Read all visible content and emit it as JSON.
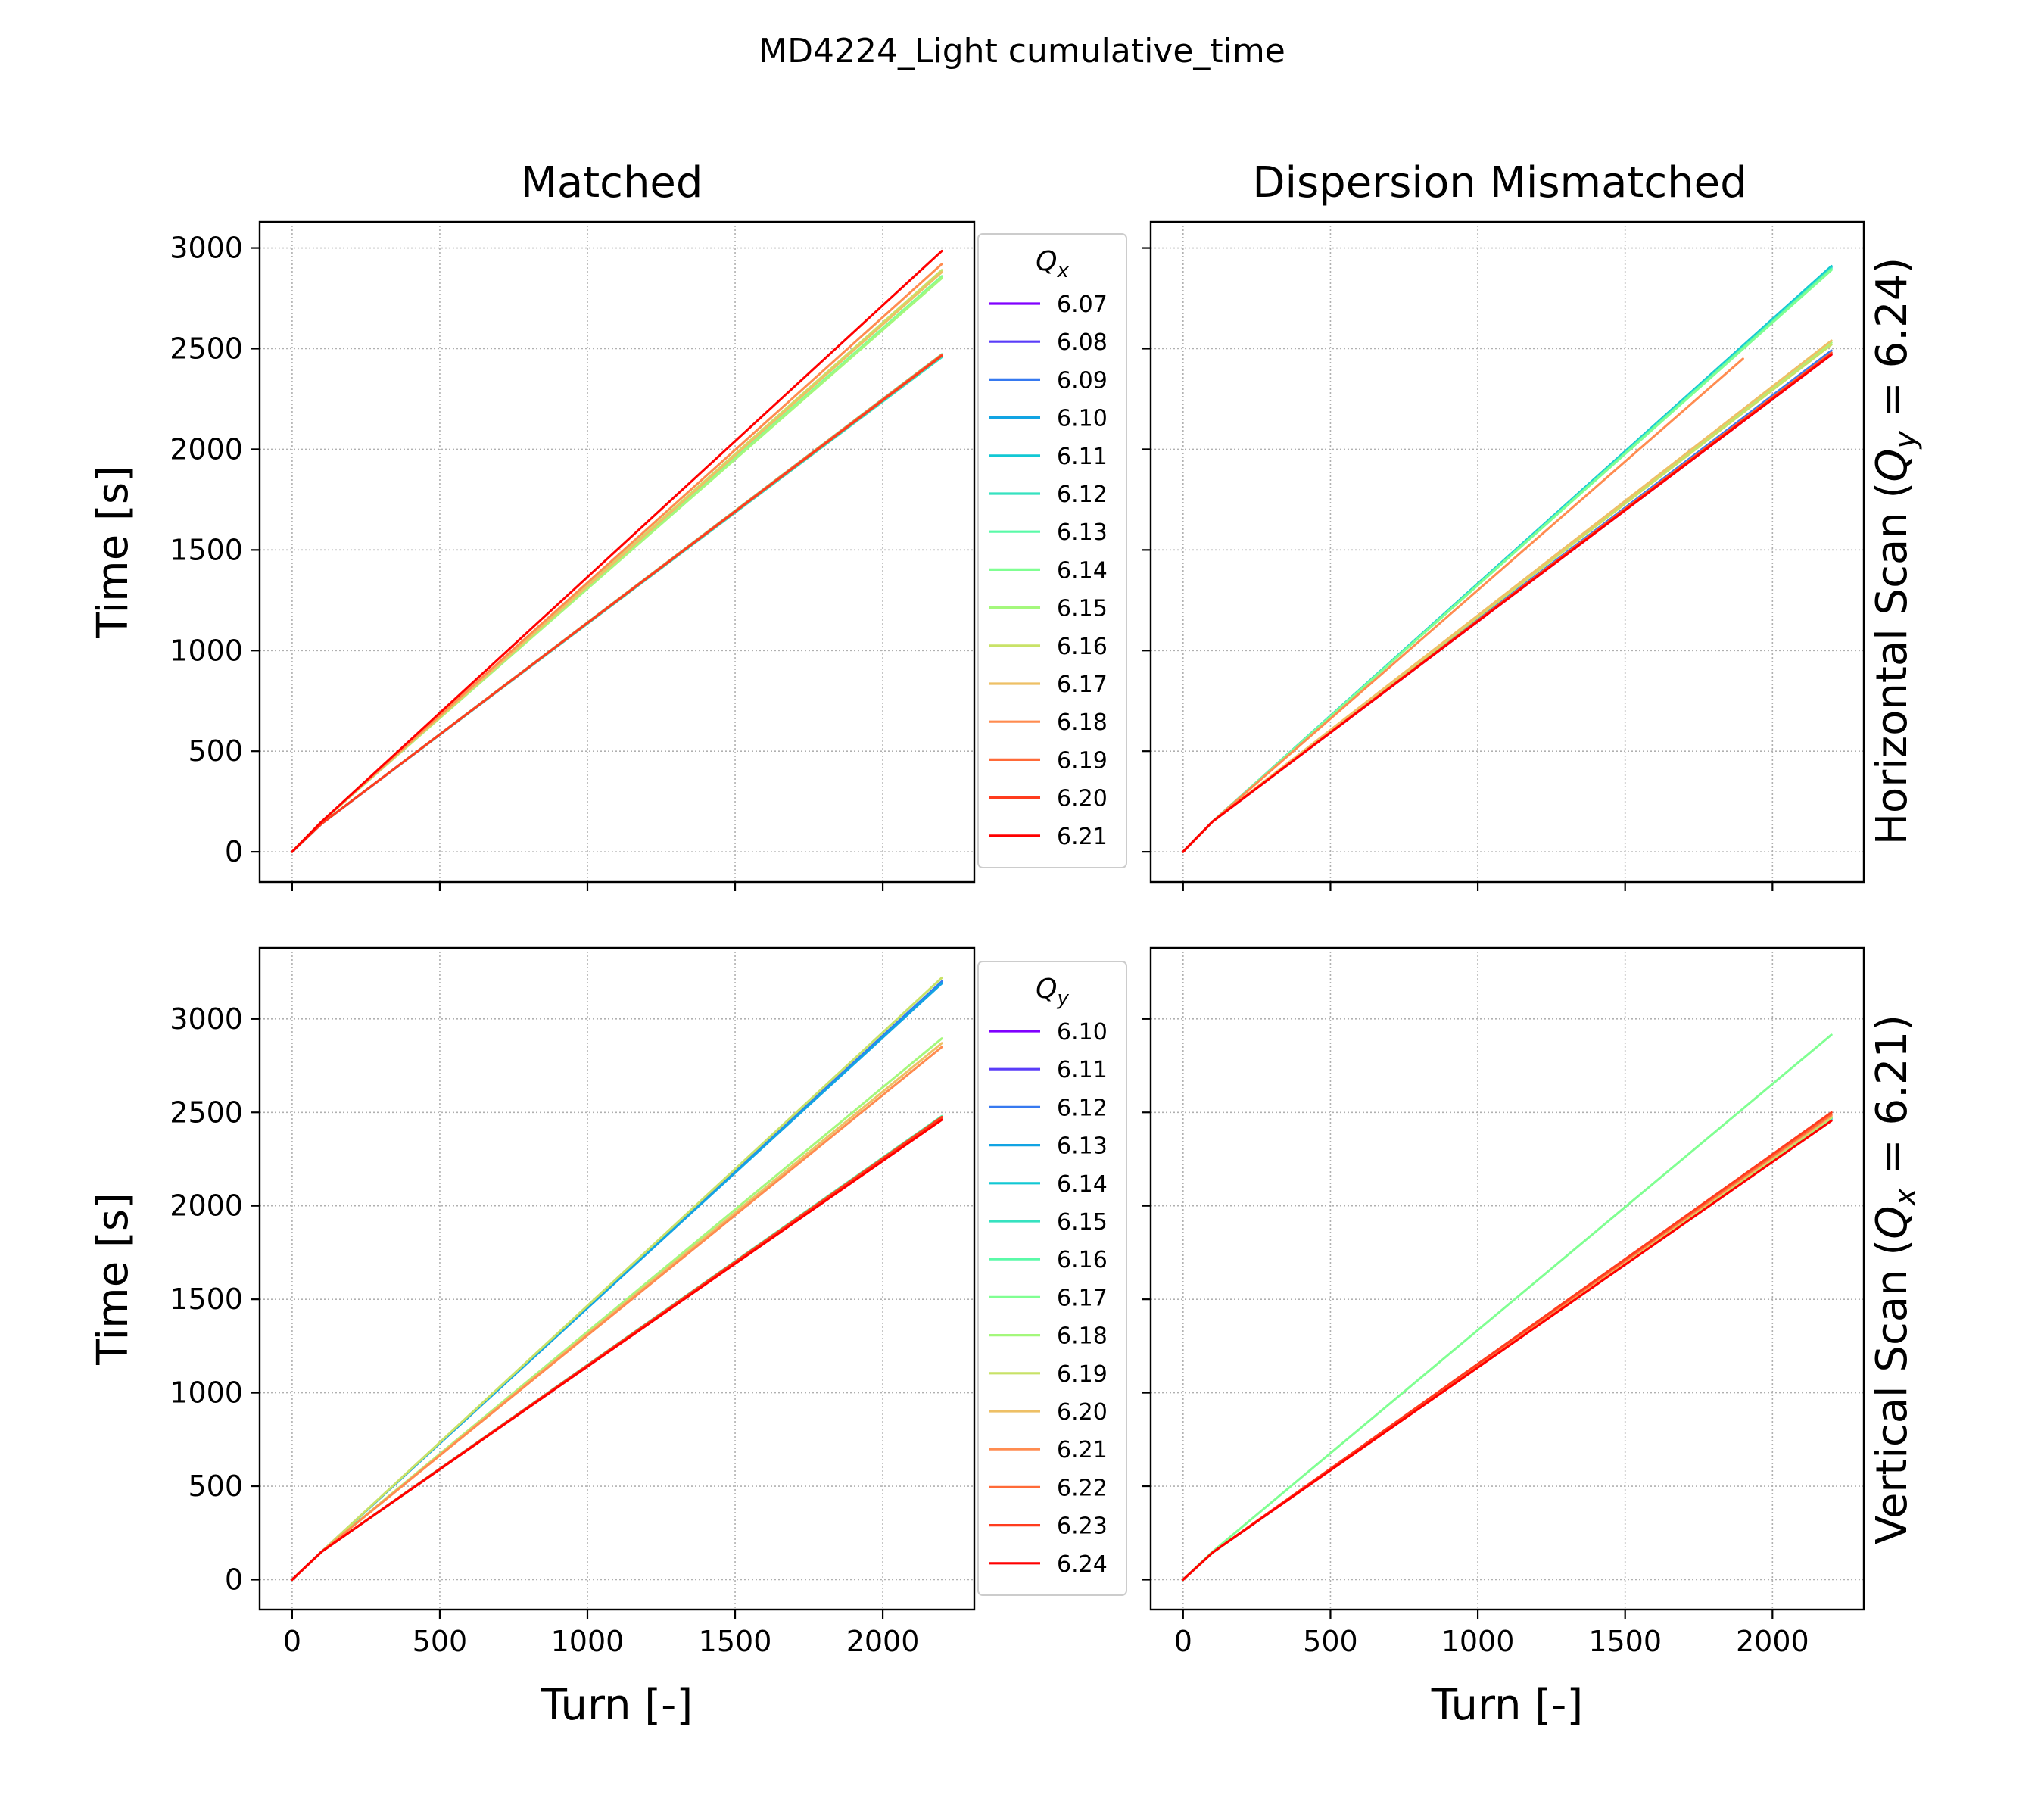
{
  "figure": {
    "title": "MD4224_Light cumulative_time",
    "col_titles": [
      "Matched",
      "Dispersion Mismatched"
    ],
    "row_labels": [
      "Horizontal Scan (Q_y = 6.24)",
      "Vertical Scan (Q_x = 6.21)"
    ]
  },
  "legends": {
    "horizontal": {
      "title": "Qx",
      "entries": [
        "6.07",
        "6.08",
        "6.09",
        "6.10",
        "6.11",
        "6.12",
        "6.13",
        "6.14",
        "6.15",
        "6.16",
        "6.17",
        "6.18",
        "6.19",
        "6.20",
        "6.21"
      ],
      "colors": [
        "#8000ff",
        "#5a3df9",
        "#3679f0",
        "#12a4e3",
        "#12c8d4",
        "#36e2c0",
        "#5afaa8",
        "#80ff92",
        "#a4f87c",
        "#c8e267",
        "#eec066",
        "#ff8c50",
        "#ff6a38",
        "#ff3c1e",
        "#ff0000"
      ]
    },
    "vertical": {
      "title": "Qy",
      "entries": [
        "6.10",
        "6.11",
        "6.12",
        "6.13",
        "6.14",
        "6.15",
        "6.16",
        "6.17",
        "6.18",
        "6.19",
        "6.20",
        "6.21",
        "6.22",
        "6.23",
        "6.24"
      ],
      "colors": [
        "#8000ff",
        "#5a3df9",
        "#3679f0",
        "#12a4e3",
        "#12c8d4",
        "#36e2c0",
        "#5afaa8",
        "#80ff92",
        "#a4f87c",
        "#c8e267",
        "#eec066",
        "#ff8c50",
        "#ff6a38",
        "#ff3c1e",
        "#ff0000"
      ]
    }
  },
  "chart_data": [
    {
      "type": "line",
      "panel": "Matched / Horizontal Scan",
      "xlabel": "Turn [-]",
      "ylabel": "Time [s]",
      "xlim": [
        -110,
        2310
      ],
      "ylim": [
        -150,
        3130
      ],
      "xticks": [
        0,
        500,
        1000,
        1500,
        2000
      ],
      "yticks": [
        0,
        500,
        1000,
        1500,
        2000,
        2500,
        3000
      ],
      "show_xticklabels": false,
      "show_yticklabels": true,
      "grid": true,
      "legend": "outside-right",
      "series": [
        {
          "name": "6.07",
          "color": "#8000ff",
          "x": [
            0,
            100,
            2200
          ],
          "y": [
            0,
            140,
            2460
          ]
        },
        {
          "name": "6.08",
          "color": "#5a3df9",
          "x": [
            0,
            100,
            2200
          ],
          "y": [
            0,
            140,
            2465
          ]
        },
        {
          "name": "6.09",
          "color": "#3679f0",
          "x": [
            0,
            100,
            2200
          ],
          "y": [
            0,
            140,
            2470
          ]
        },
        {
          "name": "6.10",
          "color": "#12a4e3",
          "x": [
            0,
            100,
            2200
          ],
          "y": [
            0,
            140,
            2468
          ]
        },
        {
          "name": "6.11",
          "color": "#12c8d4",
          "x": [
            0,
            100,
            2200
          ],
          "y": [
            0,
            140,
            2462
          ]
        },
        {
          "name": "6.12",
          "color": "#36e2c0",
          "x": [
            0,
            100,
            2200
          ],
          "y": [
            0,
            140,
            2458
          ]
        },
        {
          "name": "6.13",
          "color": "#5afaa8",
          "x": [
            0,
            100,
            2200
          ],
          "y": [
            0,
            140,
            2472
          ]
        },
        {
          "name": "6.14",
          "color": "#80ff92",
          "x": [
            0,
            100,
            2200
          ],
          "y": [
            0,
            150,
            2860
          ]
        },
        {
          "name": "6.15",
          "color": "#a4f87c",
          "x": [
            0,
            100,
            2200
          ],
          "y": [
            0,
            150,
            2850
          ]
        },
        {
          "name": "6.16",
          "color": "#c8e267",
          "x": [
            0,
            100,
            2200
          ],
          "y": [
            0,
            150,
            2890
          ]
        },
        {
          "name": "6.17",
          "color": "#eec066",
          "x": [
            0,
            100,
            2200
          ],
          "y": [
            0,
            150,
            2880
          ]
        },
        {
          "name": "6.18",
          "color": "#ff8c50",
          "x": [
            0,
            100,
            2200
          ],
          "y": [
            0,
            150,
            2920
          ]
        },
        {
          "name": "6.19",
          "color": "#ff6a38",
          "x": [
            0,
            100,
            2200
          ],
          "y": [
            0,
            140,
            2470
          ]
        },
        {
          "name": "6.20",
          "color": "#ff3c1e",
          "x": [
            0,
            100,
            2200
          ],
          "y": [
            0,
            140,
            2465
          ]
        },
        {
          "name": "6.21",
          "color": "#ff0000",
          "x": [
            0,
            100,
            2200
          ],
          "y": [
            0,
            150,
            2985
          ]
        }
      ]
    },
    {
      "type": "line",
      "panel": "Dispersion Mismatched / Horizontal Scan",
      "xlabel": "Turn [-]",
      "ylabel": "",
      "xlim": [
        -110,
        2310
      ],
      "ylim": [
        -150,
        3130
      ],
      "xticks": [
        0,
        500,
        1000,
        1500,
        2000
      ],
      "yticks": [
        0,
        500,
        1000,
        1500,
        2000,
        2500,
        3000
      ],
      "show_xticklabels": false,
      "show_yticklabels": false,
      "grid": true,
      "series": [
        {
          "name": "6.07",
          "color": "#8000ff",
          "x": [
            0,
            100,
            2200
          ],
          "y": [
            0,
            150,
            2470
          ]
        },
        {
          "name": "6.08",
          "color": "#5a3df9",
          "x": [
            0,
            100,
            2200
          ],
          "y": [
            0,
            150,
            2480
          ]
        },
        {
          "name": "6.09",
          "color": "#3679f0",
          "x": [
            0,
            100,
            2200
          ],
          "y": [
            0,
            150,
            2490
          ]
        },
        {
          "name": "6.10",
          "color": "#12a4e3",
          "x": [
            0,
            100,
            2200
          ],
          "y": [
            0,
            150,
            2905
          ]
        },
        {
          "name": "6.11",
          "color": "#12c8d4",
          "x": [
            0,
            100,
            2200
          ],
          "y": [
            0,
            150,
            2910
          ]
        },
        {
          "name": "6.12",
          "color": "#36e2c0",
          "x": [
            0,
            100,
            2200
          ],
          "y": [
            0,
            150,
            2900
          ]
        },
        {
          "name": "6.13",
          "color": "#5afaa8",
          "x": [
            0,
            100,
            2200
          ],
          "y": [
            0,
            150,
            2895
          ]
        },
        {
          "name": "6.14",
          "color": "#80ff92",
          "x": [
            0,
            100,
            2200
          ],
          "y": [
            0,
            150,
            2890
          ]
        },
        {
          "name": "6.15",
          "color": "#a4f87c",
          "x": [
            0,
            100,
            2200
          ],
          "y": [
            0,
            150,
            2530
          ]
        },
        {
          "name": "6.16",
          "color": "#c8e267",
          "x": [
            0,
            100,
            2200
          ],
          "y": [
            0,
            150,
            2520
          ]
        },
        {
          "name": "6.17",
          "color": "#eec066",
          "x": [
            0,
            100,
            2200
          ],
          "y": [
            0,
            150,
            2540
          ]
        },
        {
          "name": "6.18",
          "color": "#ff8c50",
          "x": [
            0,
            100,
            1900
          ],
          "y": [
            0,
            150,
            2450
          ]
        },
        {
          "name": "6.19",
          "color": "#ff6a38",
          "x": [
            0,
            100,
            2200
          ],
          "y": [
            0,
            150,
            2480
          ]
        },
        {
          "name": "6.20",
          "color": "#ff3c1e",
          "x": [
            0,
            100,
            2200
          ],
          "y": [
            0,
            150,
            2475
          ]
        },
        {
          "name": "6.21",
          "color": "#ff0000",
          "x": [
            0,
            100,
            2200
          ],
          "y": [
            0,
            150,
            2470
          ]
        }
      ]
    },
    {
      "type": "line",
      "panel": "Matched / Vertical Scan",
      "xlabel": "Turn [-]",
      "ylabel": "Time [s]",
      "xlim": [
        -110,
        2310
      ],
      "ylim": [
        -160,
        3380
      ],
      "xticks": [
        0,
        500,
        1000,
        1500,
        2000
      ],
      "yticks": [
        0,
        500,
        1000,
        1500,
        2000,
        2500,
        3000
      ],
      "show_xticklabels": true,
      "show_yticklabels": true,
      "grid": true,
      "legend": "outside-right",
      "series": [
        {
          "name": "6.10",
          "color": "#8000ff",
          "x": [
            0,
            100,
            2200
          ],
          "y": [
            0,
            150,
            2470
          ]
        },
        {
          "name": "6.11",
          "color": "#5a3df9",
          "x": [
            0,
            100,
            2200
          ],
          "y": [
            0,
            150,
            2475
          ]
        },
        {
          "name": "6.12",
          "color": "#3679f0",
          "x": [
            0,
            100,
            2200
          ],
          "y": [
            0,
            150,
            3200
          ]
        },
        {
          "name": "6.13",
          "color": "#12a4e3",
          "x": [
            0,
            100,
            2200
          ],
          "y": [
            0,
            150,
            3190
          ]
        },
        {
          "name": "6.14",
          "color": "#12c8d4",
          "x": [
            0,
            100,
            2200
          ],
          "y": [
            0,
            150,
            2470
          ]
        },
        {
          "name": "6.15",
          "color": "#36e2c0",
          "x": [
            0,
            100,
            2200
          ],
          "y": [
            0,
            150,
            2465
          ]
        },
        {
          "name": "6.16",
          "color": "#5afaa8",
          "x": [
            0,
            100,
            2200
          ],
          "y": [
            0,
            150,
            2480
          ]
        },
        {
          "name": "6.17",
          "color": "#80ff92",
          "x": [
            0,
            100,
            2200
          ],
          "y": [
            0,
            150,
            2470
          ]
        },
        {
          "name": "6.18",
          "color": "#a4f87c",
          "x": [
            0,
            100,
            2200
          ],
          "y": [
            0,
            150,
            2895
          ]
        },
        {
          "name": "6.19",
          "color": "#c8e267",
          "x": [
            0,
            100,
            2200
          ],
          "y": [
            0,
            150,
            3220
          ]
        },
        {
          "name": "6.20",
          "color": "#eec066",
          "x": [
            0,
            100,
            2200
          ],
          "y": [
            0,
            150,
            2870
          ]
        },
        {
          "name": "6.21",
          "color": "#ff8c50",
          "x": [
            0,
            100,
            2200
          ],
          "y": [
            0,
            150,
            2850
          ]
        },
        {
          "name": "6.22",
          "color": "#ff6a38",
          "x": [
            0,
            100,
            2200
          ],
          "y": [
            0,
            150,
            2470
          ]
        },
        {
          "name": "6.23",
          "color": "#ff3c1e",
          "x": [
            0,
            100,
            2200
          ],
          "y": [
            0,
            150,
            2475
          ]
        },
        {
          "name": "6.24",
          "color": "#ff0000",
          "x": [
            0,
            100,
            2200
          ],
          "y": [
            0,
            150,
            2460
          ]
        }
      ]
    },
    {
      "type": "line",
      "panel": "Dispersion Mismatched / Vertical Scan",
      "xlabel": "Turn [-]",
      "ylabel": "",
      "xlim": [
        -110,
        2310
      ],
      "ylim": [
        -160,
        3380
      ],
      "xticks": [
        0,
        500,
        1000,
        1500,
        2000
      ],
      "yticks": [
        0,
        500,
        1000,
        1500,
        2000,
        2500,
        3000
      ],
      "show_xticklabels": true,
      "show_yticklabels": false,
      "grid": true,
      "series": [
        {
          "name": "6.10",
          "color": "#8000ff",
          "x": [
            0,
            100,
            2200
          ],
          "y": [
            0,
            145,
            2470
          ]
        },
        {
          "name": "6.11",
          "color": "#5a3df9",
          "x": [
            0,
            100,
            2200
          ],
          "y": [
            0,
            145,
            2475
          ]
        },
        {
          "name": "6.12",
          "color": "#3679f0",
          "x": [
            0,
            100,
            2200
          ],
          "y": [
            0,
            145,
            2465
          ]
        },
        {
          "name": "6.13",
          "color": "#12a4e3",
          "x": [
            0,
            100,
            2200
          ],
          "y": [
            0,
            145,
            2470
          ]
        },
        {
          "name": "6.14",
          "color": "#12c8d4",
          "x": [
            0,
            100,
            2200
          ],
          "y": [
            0,
            145,
            2468
          ]
        },
        {
          "name": "6.15",
          "color": "#36e2c0",
          "x": [
            0,
            100,
            2200
          ],
          "y": [
            0,
            145,
            2472
          ]
        },
        {
          "name": "6.16",
          "color": "#5afaa8",
          "x": [
            0,
            100,
            2200
          ],
          "y": [
            0,
            145,
            2470
          ]
        },
        {
          "name": "6.17",
          "color": "#80ff92",
          "x": [
            0,
            100,
            2200
          ],
          "y": [
            0,
            150,
            2915
          ]
        },
        {
          "name": "6.18",
          "color": "#a4f87c",
          "x": [
            0,
            100,
            2200
          ],
          "y": [
            0,
            145,
            2470
          ]
        },
        {
          "name": "6.19",
          "color": "#c8e267",
          "x": [
            0,
            100,
            2200
          ],
          "y": [
            0,
            145,
            2475
          ]
        },
        {
          "name": "6.20",
          "color": "#eec066",
          "x": [
            0,
            100,
            2200
          ],
          "y": [
            0,
            145,
            2480
          ]
        },
        {
          "name": "6.21",
          "color": "#ff8c50",
          "x": [
            0,
            100,
            2200
          ],
          "y": [
            0,
            145,
            2485
          ]
        },
        {
          "name": "6.22",
          "color": "#ff6a38",
          "x": [
            0,
            100,
            2200
          ],
          "y": [
            0,
            145,
            2490
          ]
        },
        {
          "name": "6.23",
          "color": "#ff3c1e",
          "x": [
            0,
            100,
            2200
          ],
          "y": [
            0,
            145,
            2500
          ]
        },
        {
          "name": "6.24",
          "color": "#ff0000",
          "x": [
            0,
            100,
            2200
          ],
          "y": [
            0,
            145,
            2455
          ]
        }
      ]
    }
  ]
}
